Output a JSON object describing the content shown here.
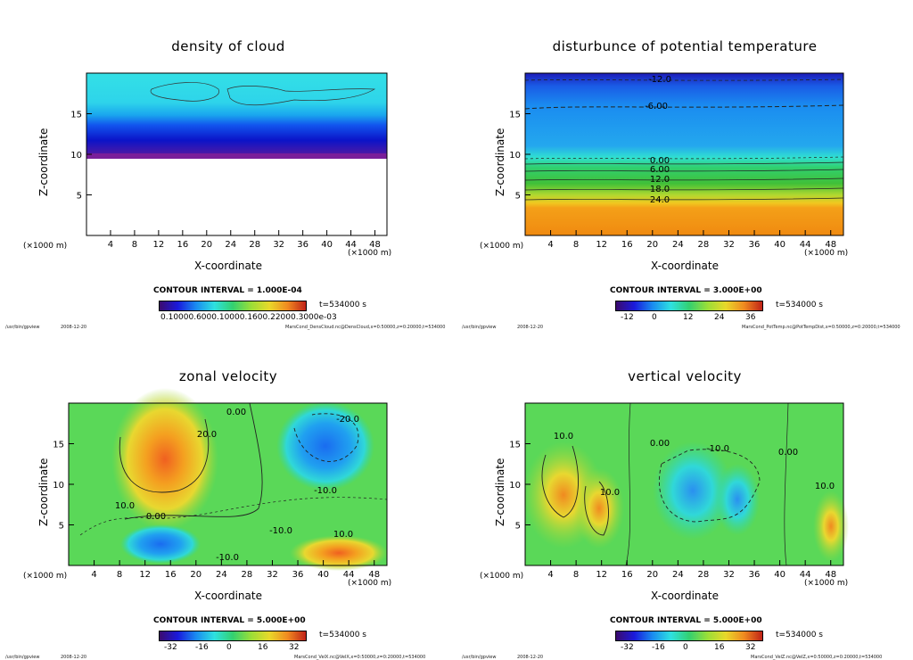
{
  "footer": {
    "program": "/usr/bin/gpview",
    "date": "2008-12-20"
  },
  "chart_data": [
    {
      "type": "heatmap",
      "title": "density of cloud",
      "xlabel": "X-coordinate",
      "ylabel": "Z-coordinate",
      "x_unit_left": "(×1000 m)",
      "x_unit_right": "(×1000 m)",
      "xlim": [
        0,
        50
      ],
      "ylim": [
        0,
        20
      ],
      "x_ticks": [
        4,
        8,
        12,
        16,
        20,
        24,
        28,
        32,
        36,
        40,
        44,
        48
      ],
      "y_ticks": [
        5,
        10,
        15
      ],
      "contour_interval": "CONTOUR INTERVAL = 1.000E-04",
      "time_label": "t=534000 s",
      "colorbar_labels": "0.10000.6000.10000.1600.22000.3000e-03",
      "source": "MarsCond_DensCloud.nc@DensCloud,x=0:50000,z=0:20000,t=534000"
    },
    {
      "type": "heatmap",
      "title": "disturbunce of potential temperature",
      "xlabel": "X-coordinate",
      "ylabel": "Z-coordinate",
      "x_unit_left": "(×1000 m)",
      "x_unit_right": "(×1000 m)",
      "xlim": [
        0,
        50
      ],
      "ylim": [
        0,
        20
      ],
      "x_ticks": [
        4,
        8,
        12,
        16,
        20,
        24,
        28,
        32,
        36,
        40,
        44,
        48
      ],
      "y_ticks": [
        5,
        10,
        15
      ],
      "contour_labels": [
        "-12.0",
        "-6.00",
        "0.00",
        "6.00",
        "12.0",
        "18.0",
        "24.0"
      ],
      "contour_interval": "CONTOUR INTERVAL = 3.000E+00",
      "time_label": "t=534000 s",
      "colorbar_ticks": [
        "-12",
        "0",
        "12",
        "24",
        "36"
      ],
      "source": "MarsCond_PotTemp.nc@PotTempDist,x=0:50000,z=0:20000,t=534000"
    },
    {
      "type": "heatmap",
      "title": "zonal velocity",
      "xlabel": "X-coordinate",
      "ylabel": "Z-coordinate",
      "x_unit_left": "(×1000 m)",
      "x_unit_right": "(×1000 m)",
      "xlim": [
        0,
        50
      ],
      "ylim": [
        0,
        20
      ],
      "x_ticks": [
        4,
        8,
        12,
        16,
        20,
        24,
        28,
        32,
        36,
        40,
        44,
        48
      ],
      "y_ticks": [
        5,
        10,
        15
      ],
      "contour_labels": [
        "20.0",
        "0.00",
        "-20.0",
        "-10.0",
        "10.0",
        "0.00",
        "-10.0",
        "10.0",
        "-10.0"
      ],
      "contour_interval": "CONTOUR INTERVAL = 5.000E+00",
      "time_label": "t=534000 s",
      "colorbar_ticks": [
        "-32",
        "-16",
        "0",
        "16",
        "32"
      ],
      "source": "MarsCond_VelX.nc@VelX,x=0:50000,z=0:20000,t=534000"
    },
    {
      "type": "heatmap",
      "title": "vertical velocity",
      "xlabel": "X-coordinate",
      "ylabel": "Z-coordinate",
      "x_unit_left": "(×1000 m)",
      "x_unit_right": "(×1000 m)",
      "xlim": [
        0,
        50
      ],
      "ylim": [
        0,
        20
      ],
      "x_ticks": [
        4,
        8,
        12,
        16,
        20,
        24,
        28,
        32,
        36,
        40,
        44,
        48
      ],
      "y_ticks": [
        5,
        10,
        15
      ],
      "contour_labels": [
        "10.0",
        "10.0",
        "0.00",
        "-10.0",
        "0.00",
        "10.0"
      ],
      "contour_interval": "CONTOUR INTERVAL = 5.000E+00",
      "time_label": "t=534000 s",
      "colorbar_ticks": [
        "-32",
        "-16",
        "0",
        "16",
        "32"
      ],
      "source": "MarsCond_VelZ.nc@VelZ,x=0:50000,z=0:20000,t=534000"
    }
  ]
}
